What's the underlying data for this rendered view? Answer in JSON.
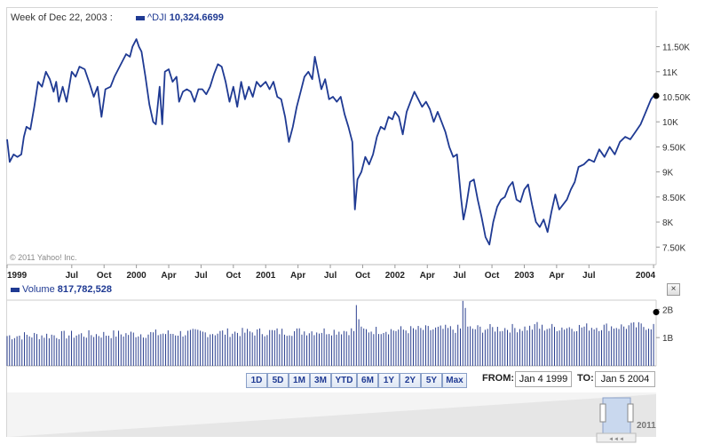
{
  "header": {
    "week_label": "Week of Dec 22, 2003 :",
    "series_name": "^DJI",
    "series_value": "10,324.6699",
    "volume_label": "Volume",
    "volume_value": "817,782,528",
    "copyright": "© 2011 Yahoo! Inc."
  },
  "colors": {
    "line": "#1f3a93",
    "volume": "#2a3f8f",
    "frame": "#d5d5d5"
  },
  "ranges": [
    "1D",
    "5D",
    "1M",
    "3M",
    "YTD",
    "6M",
    "1Y",
    "2Y",
    "5Y",
    "Max"
  ],
  "dates": {
    "from_label": "FROM:",
    "from_value": "Jan 4 1999",
    "to_label": "TO:",
    "to_value": "Jan 5 2004"
  },
  "navigator": {
    "year_label": "2011",
    "handle_icon": "◄◄◄"
  },
  "chart_data": [
    {
      "type": "line",
      "series": [
        {
          "name": "^DJI",
          "current": 10324.6699
        }
      ],
      "y_ticks": [
        "7.50K",
        "8K",
        "8.50K",
        "9K",
        "9.50K",
        "10K",
        "10.50K",
        "11K",
        "11.50K"
      ],
      "y_tick_values": [
        7500,
        8000,
        8500,
        9000,
        9500,
        10000,
        10500,
        11000,
        11500
      ],
      "ylim": [
        7150,
        11900
      ],
      "x_ticks": [
        "1999",
        "Jul",
        "Oct",
        "2000",
        "Apr",
        "Jul",
        "Oct",
        "2001",
        "Apr",
        "Jul",
        "Oct",
        "2002",
        "Apr",
        "Jul",
        "Oct",
        "2003",
        "Apr",
        "Jul",
        "2004"
      ],
      "x_tick_values": [
        1999.0,
        1999.5,
        1999.75,
        2000.0,
        2000.25,
        2000.5,
        2000.75,
        2001.0,
        2001.25,
        2001.5,
        2001.75,
        2002.0,
        2002.25,
        2002.5,
        2002.75,
        2003.0,
        2003.25,
        2003.5,
        2004.0
      ],
      "xlim": [
        1999.0,
        2004.02
      ],
      "points": [
        [
          1999.0,
          9650
        ],
        [
          1999.02,
          9200
        ],
        [
          1999.05,
          9350
        ],
        [
          1999.08,
          9300
        ],
        [
          1999.11,
          9350
        ],
        [
          1999.13,
          9700
        ],
        [
          1999.15,
          9900
        ],
        [
          1999.18,
          9850
        ],
        [
          1999.21,
          10300
        ],
        [
          1999.24,
          10800
        ],
        [
          1999.27,
          10700
        ],
        [
          1999.3,
          11000
        ],
        [
          1999.33,
          10850
        ],
        [
          1999.36,
          10600
        ],
        [
          1999.38,
          10800
        ],
        [
          1999.4,
          10400
        ],
        [
          1999.43,
          10700
        ],
        [
          1999.46,
          10400
        ],
        [
          1999.5,
          11000
        ],
        [
          1999.53,
          10900
        ],
        [
          1999.56,
          11100
        ],
        [
          1999.6,
          11050
        ],
        [
          1999.64,
          10750
        ],
        [
          1999.67,
          10500
        ],
        [
          1999.7,
          10700
        ],
        [
          1999.73,
          10100
        ],
        [
          1999.76,
          10650
        ],
        [
          1999.8,
          10700
        ],
        [
          1999.83,
          10900
        ],
        [
          1999.86,
          11050
        ],
        [
          1999.89,
          11200
        ],
        [
          1999.92,
          11350
        ],
        [
          1999.95,
          11300
        ],
        [
          1999.97,
          11500
        ],
        [
          2000.0,
          11650
        ],
        [
          2000.02,
          11500
        ],
        [
          2000.04,
          11400
        ],
        [
          2000.07,
          10900
        ],
        [
          2000.1,
          10350
        ],
        [
          2000.13,
          10000
        ],
        [
          2000.15,
          9950
        ],
        [
          2000.18,
          10700
        ],
        [
          2000.2,
          9950
        ],
        [
          2000.22,
          11000
        ],
        [
          2000.25,
          11050
        ],
        [
          2000.28,
          10800
        ],
        [
          2000.31,
          10900
        ],
        [
          2000.33,
          10400
        ],
        [
          2000.36,
          10600
        ],
        [
          2000.39,
          10650
        ],
        [
          2000.42,
          10600
        ],
        [
          2000.45,
          10400
        ],
        [
          2000.48,
          10650
        ],
        [
          2000.51,
          10650
        ],
        [
          2000.54,
          10550
        ],
        [
          2000.57,
          10700
        ],
        [
          2000.6,
          10950
        ],
        [
          2000.63,
          11150
        ],
        [
          2000.66,
          11100
        ],
        [
          2000.69,
          10800
        ],
        [
          2000.72,
          10400
        ],
        [
          2000.75,
          10700
        ],
        [
          2000.78,
          10300
        ],
        [
          2000.81,
          10800
        ],
        [
          2000.84,
          10450
        ],
        [
          2000.87,
          10700
        ],
        [
          2000.9,
          10500
        ],
        [
          2000.93,
          10800
        ],
        [
          2000.96,
          10700
        ],
        [
          2001.0,
          10800
        ],
        [
          2001.03,
          10650
        ],
        [
          2001.06,
          10800
        ],
        [
          2001.09,
          10500
        ],
        [
          2001.12,
          10450
        ],
        [
          2001.15,
          10100
        ],
        [
          2001.18,
          9600
        ],
        [
          2001.21,
          9900
        ],
        [
          2001.24,
          10300
        ],
        [
          2001.27,
          10600
        ],
        [
          2001.3,
          10900
        ],
        [
          2001.33,
          11000
        ],
        [
          2001.36,
          10850
        ],
        [
          2001.38,
          11300
        ],
        [
          2001.4,
          11050
        ],
        [
          2001.43,
          10650
        ],
        [
          2001.46,
          10850
        ],
        [
          2001.49,
          10450
        ],
        [
          2001.52,
          10500
        ],
        [
          2001.55,
          10400
        ],
        [
          2001.58,
          10500
        ],
        [
          2001.61,
          10150
        ],
        [
          2001.64,
          9900
        ],
        [
          2001.67,
          9600
        ],
        [
          2001.69,
          8250
        ],
        [
          2001.71,
          8850
        ],
        [
          2001.74,
          9000
        ],
        [
          2001.77,
          9300
        ],
        [
          2001.8,
          9150
        ],
        [
          2001.83,
          9350
        ],
        [
          2001.86,
          9700
        ],
        [
          2001.89,
          9900
        ],
        [
          2001.92,
          9850
        ],
        [
          2001.95,
          10100
        ],
        [
          2001.98,
          10050
        ],
        [
          2002.0,
          10200
        ],
        [
          2002.03,
          10100
        ],
        [
          2002.06,
          9750
        ],
        [
          2002.09,
          10200
        ],
        [
          2002.12,
          10400
        ],
        [
          2002.15,
          10600
        ],
        [
          2002.18,
          10450
        ],
        [
          2002.21,
          10300
        ],
        [
          2002.24,
          10400
        ],
        [
          2002.27,
          10250
        ],
        [
          2002.3,
          10000
        ],
        [
          2002.33,
          10200
        ],
        [
          2002.36,
          10000
        ],
        [
          2002.39,
          9800
        ],
        [
          2002.42,
          9500
        ],
        [
          2002.45,
          9300
        ],
        [
          2002.48,
          9350
        ],
        [
          2002.51,
          8500
        ],
        [
          2002.53,
          8050
        ],
        [
          2002.55,
          8300
        ],
        [
          2002.58,
          8800
        ],
        [
          2002.61,
          8850
        ],
        [
          2002.64,
          8450
        ],
        [
          2002.67,
          8100
        ],
        [
          2002.7,
          7700
        ],
        [
          2002.73,
          7550
        ],
        [
          2002.76,
          8000
        ],
        [
          2002.79,
          8300
        ],
        [
          2002.82,
          8450
        ],
        [
          2002.85,
          8500
        ],
        [
          2002.88,
          8700
        ],
        [
          2002.91,
          8800
        ],
        [
          2002.94,
          8450
        ],
        [
          2002.97,
          8400
        ],
        [
          2003.0,
          8650
        ],
        [
          2003.03,
          8750
        ],
        [
          2003.06,
          8350
        ],
        [
          2003.09,
          8000
        ],
        [
          2003.12,
          7900
        ],
        [
          2003.15,
          8050
        ],
        [
          2003.18,
          7800
        ],
        [
          2003.21,
          8200
        ],
        [
          2003.24,
          8550
        ],
        [
          2003.27,
          8250
        ],
        [
          2003.3,
          8350
        ],
        [
          2003.33,
          8450
        ],
        [
          2003.36,
          8650
        ],
        [
          2003.39,
          8800
        ],
        [
          2003.42,
          9100
        ],
        [
          2003.46,
          9150
        ],
        [
          2003.5,
          9250
        ],
        [
          2003.54,
          9200
        ],
        [
          2003.58,
          9450
        ],
        [
          2003.62,
          9300
        ],
        [
          2003.66,
          9500
        ],
        [
          2003.7,
          9350
        ],
        [
          2003.74,
          9600
        ],
        [
          2003.78,
          9700
        ],
        [
          2003.82,
          9650
        ],
        [
          2003.86,
          9800
        ],
        [
          2003.9,
          9950
        ],
        [
          2003.94,
          10200
        ],
        [
          2003.98,
          10450
        ],
        [
          2004.0,
          10520
        ]
      ]
    },
    {
      "type": "bar",
      "series": [
        {
          "name": "Volume",
          "current": 817782528
        }
      ],
      "y_ticks": [
        "1B",
        "2B"
      ],
      "y_tick_values": [
        1000000000,
        2000000000
      ],
      "ylim": [
        0,
        2200000000
      ],
      "peaks": [
        [
          2001.71,
          2150000000
        ],
        [
          2002.53,
          2300000000
        ],
        [
          2002.55,
          2050000000
        ],
        [
          2001.72,
          1650000000
        ],
        [
          2003.1,
          1550000000
        ]
      ],
      "typical_range": [
        900000000,
        1400000000
      ]
    }
  ]
}
